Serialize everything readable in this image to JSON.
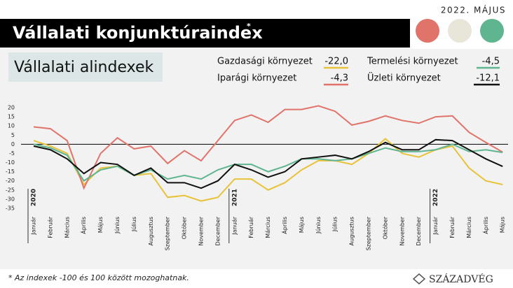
{
  "date": "2022. MÁJUS",
  "footnote": "* Az indexek -100 és 100 között mozoghatnak.",
  "logo": "SZÁZADVÉG",
  "chart_data": {
    "type": "line",
    "title": "Vállalati konjunktúraindex",
    "title_mark": "*",
    "subtitle": "Vállalati alindexek",
    "categories": [
      "Január",
      "Február",
      "Március",
      "Április",
      "Május",
      "Június",
      "Július",
      "Augusztus",
      "Szeptember",
      "Október",
      "November",
      "December",
      "Január",
      "Február",
      "Március",
      "Április",
      "Május",
      "Június",
      "Július",
      "Augusztus",
      "Szeptember",
      "Október",
      "November",
      "December",
      "Január",
      "Február",
      "Március",
      "Április",
      "Május"
    ],
    "year_labels": [
      {
        "text": "2020",
        "index": 0
      },
      {
        "text": "2021",
        "index": 12
      },
      {
        "text": "2022",
        "index": 24
      }
    ],
    "ylim": [
      -35,
      20
    ],
    "yticks": [
      20,
      15,
      10,
      5,
      0,
      -5,
      -10,
      -15,
      -20,
      -25,
      -30,
      -35
    ],
    "series": [
      {
        "name": "Gazdasági környezet",
        "color": "#e8c33a",
        "last_label": "-22,0",
        "values": [
          2,
          -1,
          -5,
          -22,
          -13,
          -12,
          -17,
          -16,
          -29,
          -28,
          -31,
          -29,
          -19,
          -19,
          -25,
          -21,
          -14,
          -9,
          -9,
          -11,
          -5,
          3,
          -5,
          -7,
          -3,
          -1,
          -13,
          -20,
          -22.0
        ]
      },
      {
        "name": "Iparági környezet",
        "color": "#e0736a",
        "last_label": "-4,3",
        "values": [
          9.5,
          8.5,
          2,
          -24,
          -5,
          3.5,
          -2.5,
          -1,
          -10.5,
          -3.5,
          -9,
          2,
          13,
          16,
          12,
          19,
          19,
          21,
          18,
          10.5,
          12.5,
          15.5,
          13,
          11.5,
          15,
          15.5,
          6.5,
          1,
          -4.3
        ]
      },
      {
        "name": "Termelési környezet",
        "color": "#5fb58f",
        "last_label": "-4,5",
        "values": [
          0,
          -2,
          -6,
          -20,
          -14,
          -12,
          -17,
          -14,
          -19,
          -17,
          -19,
          -14,
          -11,
          -11,
          -15,
          -12,
          -8,
          -8,
          -9,
          -8,
          -5,
          -2,
          -4,
          -4,
          -3,
          0,
          -4,
          -3,
          -4.5
        ]
      },
      {
        "name": "Üzleti környezet",
        "color": "#111111",
        "last_label": "-12,1",
        "values": [
          -1,
          -3,
          -8,
          -16,
          -10,
          -11,
          -17,
          -13,
          -21,
          -21,
          -24,
          -20,
          -11,
          -14,
          -18,
          -15,
          -8,
          -7,
          -6,
          -8,
          -4,
          1,
          -3,
          -3,
          2.5,
          2,
          -3,
          -8,
          -12.1
        ]
      }
    ]
  }
}
